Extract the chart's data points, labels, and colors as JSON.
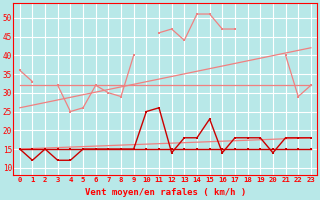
{
  "x": [
    0,
    1,
    2,
    3,
    4,
    5,
    6,
    7,
    8,
    9,
    10,
    11,
    12,
    13,
    14,
    15,
    16,
    17,
    18,
    19,
    20,
    21,
    22,
    23
  ],
  "line_rafales": [
    36,
    33,
    null,
    32,
    25,
    26,
    32,
    30,
    29,
    40,
    null,
    46,
    47,
    44,
    51,
    51,
    47,
    47,
    null,
    null,
    null,
    40,
    29,
    32
  ],
  "line_diag_upper": [
    26,
    null,
    null,
    null,
    null,
    null,
    null,
    null,
    null,
    null,
    null,
    null,
    null,
    null,
    null,
    null,
    null,
    null,
    null,
    null,
    null,
    null,
    null,
    42
  ],
  "line_horiz": [
    32,
    32,
    32,
    32,
    32,
    32,
    32,
    32,
    32,
    32,
    32,
    32,
    32,
    32,
    32,
    32,
    32,
    32,
    32,
    32,
    32,
    32,
    32,
    32
  ],
  "line_diag_lower": [
    15,
    null,
    null,
    null,
    null,
    null,
    null,
    null,
    null,
    null,
    null,
    null,
    null,
    null,
    null,
    null,
    null,
    null,
    null,
    null,
    null,
    null,
    null,
    18
  ],
  "line_mean": [
    15,
    12,
    15,
    12,
    12,
    15,
    15,
    15,
    15,
    15,
    25,
    26,
    14,
    18,
    18,
    23,
    14,
    18,
    18,
    18,
    14,
    18,
    18,
    18
  ],
  "line_flat": [
    15,
    15,
    15,
    15,
    15,
    15,
    15,
    15,
    15,
    15,
    15,
    15,
    15,
    15,
    15,
    15,
    15,
    15,
    15,
    15,
    15,
    15,
    15,
    15
  ],
  "xlabel": "Vent moyen/en rafales ( km/h )",
  "bg_color": "#b8e8e8",
  "grid_color": "#ffffff",
  "light_pink": "#f08080",
  "dark_red": "#cc0000",
  "ylim": [
    8,
    54
  ],
  "yticks": [
    10,
    15,
    20,
    25,
    30,
    35,
    40,
    45,
    50
  ],
  "xlim": [
    -0.5,
    23.5
  ]
}
